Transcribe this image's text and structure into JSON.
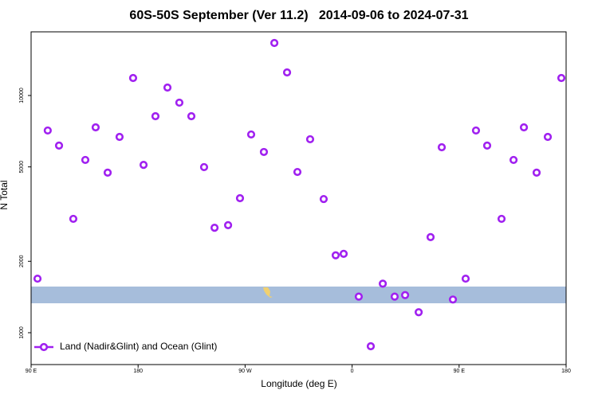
{
  "chart_data": {
    "type": "scatter",
    "title": "60S-50S September (Ver 11.2)   2014-09-06 to 2024-07-31",
    "x_label": "Longitude (deg E)",
    "y_label": "N Total",
    "xlim": [
      90,
      540
    ],
    "xticks": [
      {
        "value": 90,
        "label": "90 E"
      },
      {
        "value": 180,
        "label": "180"
      },
      {
        "value": 270,
        "label": "90 W"
      },
      {
        "value": 360,
        "label": "0"
      },
      {
        "value": 450,
        "label": "90 E"
      },
      {
        "value": 540,
        "label": "180"
      }
    ],
    "ylim": [
      734,
      18550
    ],
    "yticks": [
      1000,
      2000,
      5000,
      10000
    ],
    "log_y": true,
    "grid": false,
    "legend": "lower left",
    "series": [
      {
        "name": "Land (Nadir&Glint) and Ocean (Glint)",
        "color": "#a020f0",
        "x": [
          95.4,
          104,
          113.5,
          125.5,
          135.6,
          144.3,
          154.4,
          164.4,
          175.8,
          184.6,
          194.6,
          204.7,
          214.7,
          224.8,
          235.5,
          244.3,
          255.7,
          265.7,
          275.1,
          285.8,
          294.6,
          305.3,
          314,
          324.7,
          336.1,
          346.2,
          352.9,
          365.6,
          375.7,
          385.8,
          395.8,
          404.6,
          416,
          426,
          435.4,
          444.8,
          455.5,
          464.2,
          473.6,
          485.7,
          495.8,
          504.5,
          515.2,
          524.6,
          536
        ],
        "values": [
          1690,
          7120,
          6150,
          3020,
          5350,
          7340,
          4730,
          6690,
          11850,
          5100,
          8180,
          10800,
          9330,
          8180,
          4990,
          2770,
          2840,
          3690,
          6850,
          5780,
          16650,
          12510,
          4760,
          6540,
          3660,
          2120,
          2150,
          1420,
          877,
          1610,
          1420,
          1440,
          1220,
          2530,
          6050,
          1380,
          1690,
          7120,
          6150,
          3020,
          5350,
          7340,
          4730,
          6690,
          11850
        ]
      }
    ]
  }
}
